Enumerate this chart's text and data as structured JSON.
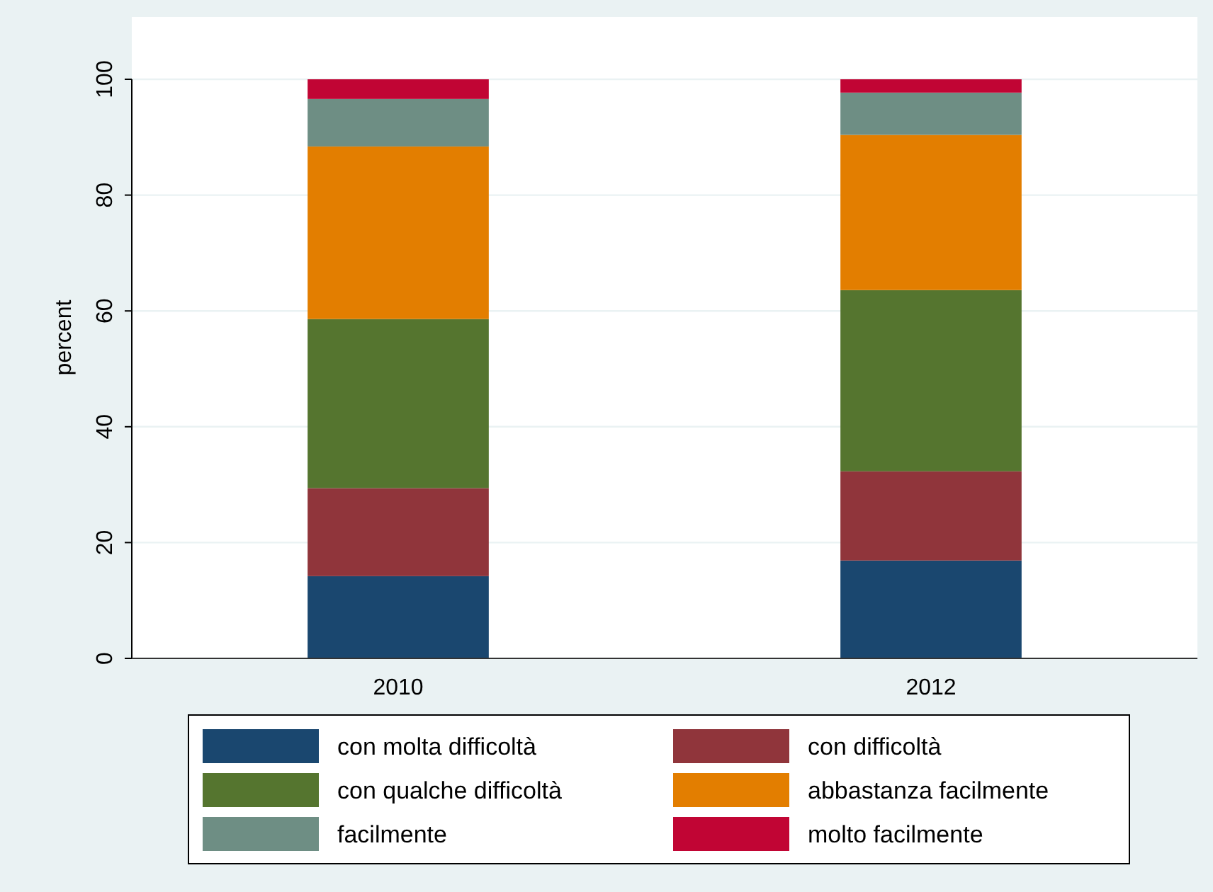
{
  "chart_data": {
    "type": "bar",
    "stacked": true,
    "ylabel": "percent",
    "categories": [
      "2010",
      "2012"
    ],
    "series": [
      {
        "name": "con molta difficoltà",
        "color": "#1a476f",
        "values": [
          14.2,
          16.9
        ]
      },
      {
        "name": "con difficoltà",
        "color": "#90353b",
        "values": [
          15.2,
          15.4
        ]
      },
      {
        "name": "con qualche difficoltà",
        "color": "#55752f",
        "values": [
          29.2,
          31.3
        ]
      },
      {
        "name": "abbastanza facilmente",
        "color": "#e37e00",
        "values": [
          29.8,
          26.8
        ]
      },
      {
        "name": "facilmente",
        "color": "#6e8e84",
        "values": [
          8.2,
          7.3
        ]
      },
      {
        "name": "molto facilmente",
        "color": "#c10534",
        "values": [
          3.4,
          2.3
        ]
      }
    ],
    "ylim": [
      0,
      100
    ],
    "yticks": [
      0,
      20,
      40,
      60,
      80,
      100
    ],
    "grid": "y",
    "legend": "bottom"
  }
}
